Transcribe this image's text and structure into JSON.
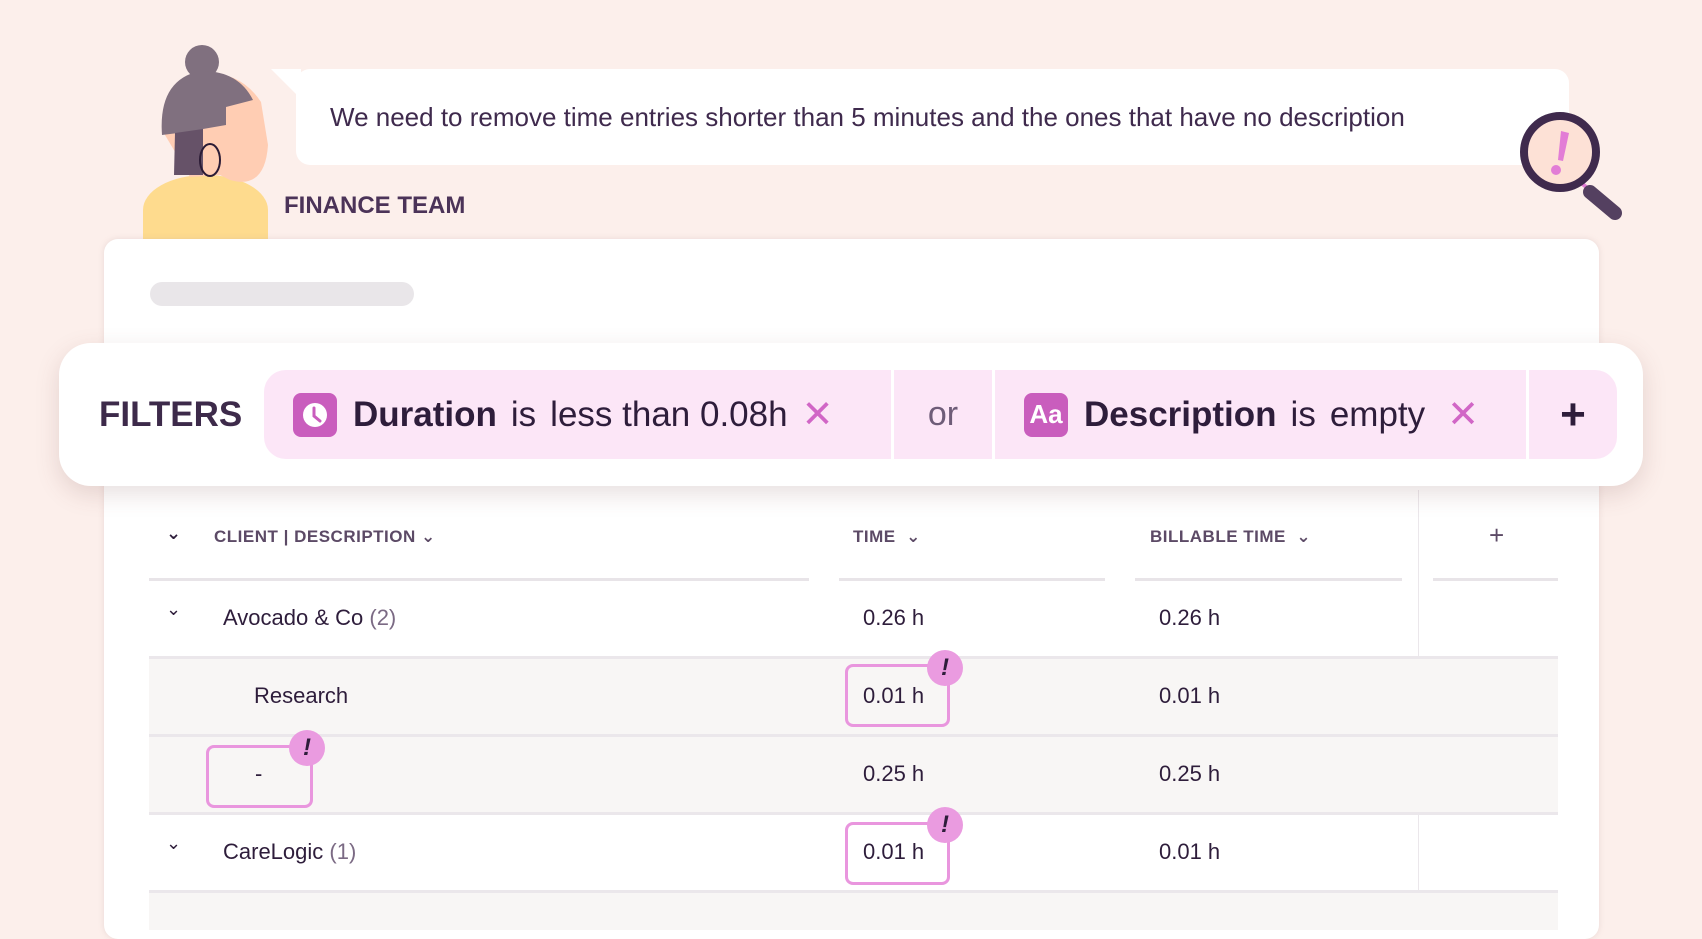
{
  "message": {
    "text": "We need to remove time entries shorter than 5 minutes and the ones that have no description",
    "author": "FINANCE TEAM"
  },
  "filters": {
    "label": "FILTERS",
    "chips": [
      {
        "icon": "clock-icon",
        "field": "Duration",
        "operator": "is",
        "value": "less than 0.08h"
      },
      {
        "icon": "text-aa-icon",
        "icon_text": "Aa",
        "field": "Description",
        "operator": "is",
        "value": "empty"
      }
    ],
    "joiner": "or",
    "add_label": "+"
  },
  "table": {
    "columns": [
      "CLIENT | DESCRIPTION",
      "TIME",
      "BILLABLE TIME"
    ],
    "add_column_label": "+",
    "rows": [
      {
        "type": "group",
        "label": "Avocado & Co",
        "count": "(2)",
        "time": "0.26 h",
        "billable": "0.26 h"
      },
      {
        "type": "entry",
        "label": "Research",
        "time": "0.01 h",
        "billable": "0.01 h",
        "flag": "time"
      },
      {
        "type": "entry",
        "label": "-",
        "time": "0.25 h",
        "billable": "0.25 h",
        "flag": "description"
      },
      {
        "type": "group",
        "label": "CareLogic",
        "count": "(1)",
        "time": "0.01 h",
        "billable": "0.01 h",
        "flag": "time"
      }
    ],
    "flag_mark": "!"
  },
  "colors": {
    "accent": "#c95dbd",
    "chip_bg": "#fce6f7",
    "flag": "#e996de",
    "background": "#fcefeb"
  }
}
